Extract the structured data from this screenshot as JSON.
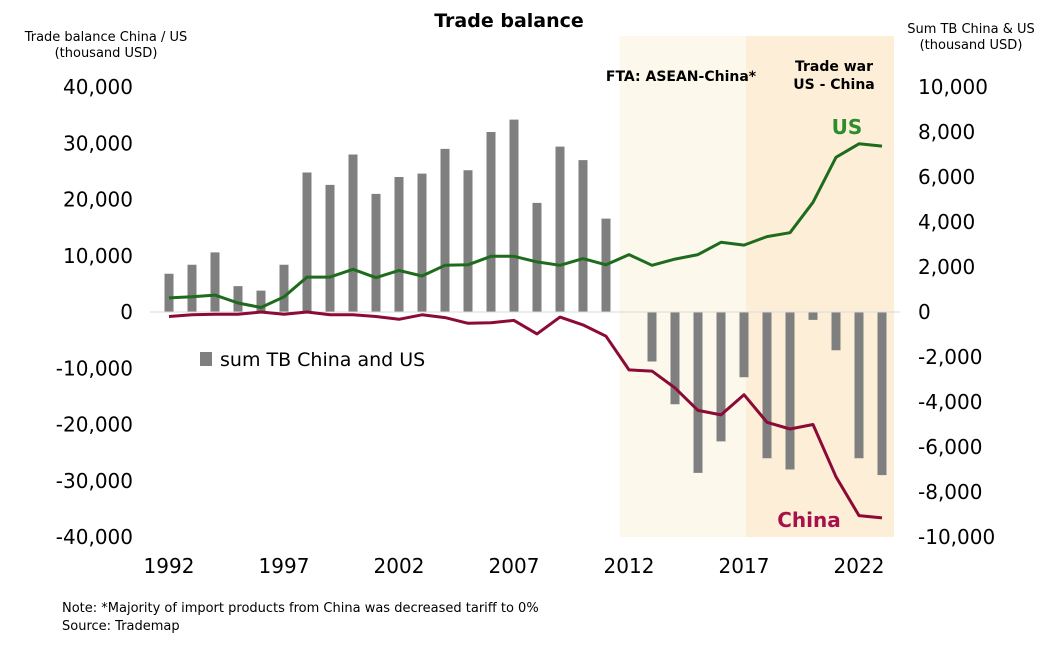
{
  "chart_data": {
    "type": "bar+line",
    "title": "Trade balance",
    "ylabel_left": [
      "Trade balance China / US",
      "(thousand USD)"
    ],
    "ylabel_right": [
      "Sum TB China & US",
      "(thousand USD)"
    ],
    "ylim_left": [
      -40000,
      40000
    ],
    "ylim_right": [
      -10000,
      10000
    ],
    "y_ticks_left": [
      "40,000",
      "30,000",
      "20,000",
      "10,000",
      "0",
      "-10,000",
      "-20,000",
      "-30,000",
      "-40,000"
    ],
    "y_ticks_right": [
      "10,000",
      "8,000",
      "6,000",
      "4,000",
      "2,000",
      "0",
      "-2,000",
      "-4,000",
      "-6,000",
      "-8,000",
      "-10,000"
    ],
    "x_ticks": [
      "1992",
      "1997",
      "2002",
      "2007",
      "2012",
      "2017",
      "2022"
    ],
    "x": [
      1992,
      1993,
      1994,
      1995,
      1996,
      1997,
      1998,
      1999,
      2000,
      2001,
      2002,
      2003,
      2004,
      2005,
      2006,
      2007,
      2008,
      2009,
      2010,
      2011,
      2012,
      2013,
      2014,
      2015,
      2016,
      2017,
      2018,
      2019,
      2020,
      2021,
      2022,
      2023
    ],
    "series": [
      {
        "name": "sum TB China and US",
        "type": "bar",
        "axis": "right",
        "color": "#7f7f7f",
        "values": [
          1700,
          2100,
          2650,
          1150,
          950,
          2100,
          6200,
          5650,
          7000,
          5250,
          6000,
          6150,
          7250,
          6300,
          8000,
          8550,
          4850,
          7350,
          6750,
          4150,
          0,
          -2200,
          -4100,
          -7150,
          -5750,
          -2900,
          -6500,
          -7000,
          -350,
          -1700,
          -6500,
          -7250
        ]
      },
      {
        "name": "US",
        "type": "line",
        "axis": "left",
        "color": "#1e6b1e",
        "values": [
          2500,
          2700,
          3000,
          1600,
          800,
          2700,
          6200,
          6200,
          7600,
          6100,
          7400,
          6400,
          8300,
          8400,
          9900,
          9900,
          8900,
          8300,
          9500,
          8400,
          10200,
          8300,
          9400,
          10200,
          12400,
          11900,
          13400,
          14100,
          19500,
          27500,
          29900,
          29500
        ]
      },
      {
        "name": "China",
        "type": "line",
        "axis": "left",
        "color": "#8b0a36",
        "values": [
          -800,
          -500,
          -400,
          -400,
          0,
          -400,
          0,
          -500,
          -500,
          -800,
          -1300,
          -500,
          -1000,
          -2000,
          -1900,
          -1500,
          -3900,
          -900,
          -2300,
          -4300,
          -10300,
          -10500,
          -13500,
          -17500,
          -18300,
          -14700,
          -19600,
          -20800,
          -20000,
          -29300,
          -36200,
          -36600
        ]
      }
    ],
    "legend": [
      "sum TB China and US"
    ],
    "annotations": [
      {
        "text": "FTA: ASEAN-China*",
        "x_from": 2012,
        "x_to": 2017.5,
        "color": "#fdf8ec"
      },
      {
        "text_lines": [
          "Trade war",
          "US - China"
        ],
        "x_from": 2017.5,
        "x_to": 2023.5,
        "color": "#fdefd7"
      }
    ],
    "series_labels": [
      "US",
      "China"
    ]
  },
  "notes": {
    "note": "Note: *Majority of import products from China was decreased tariff to 0%",
    "source": "Source: Trademap"
  }
}
